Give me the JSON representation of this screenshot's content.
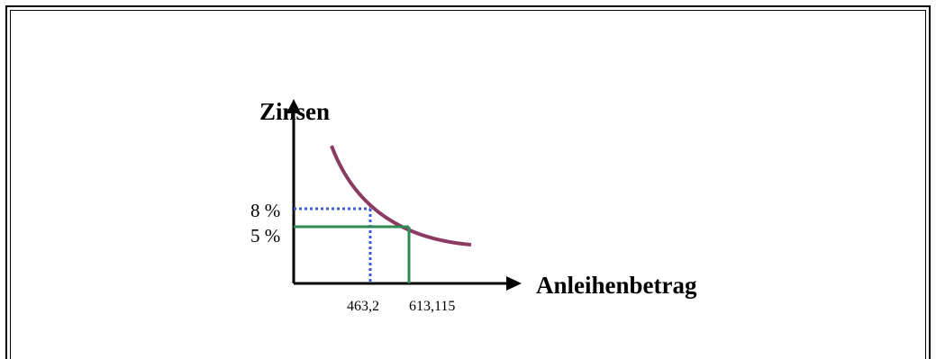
{
  "diagram": {
    "y_axis_title": "Zinsen",
    "x_axis_title": "Anleihenbetrag",
    "y_ticks": {
      "high": "8 %",
      "low": "5 %"
    },
    "x_ticks": {
      "left": "463,2",
      "right": "613,115"
    },
    "colors": {
      "curve": "#8b3a62",
      "dotted_guide": "#3b5bdb",
      "solid_guide": "#2e8b57",
      "axes": "#000000"
    }
  }
}
